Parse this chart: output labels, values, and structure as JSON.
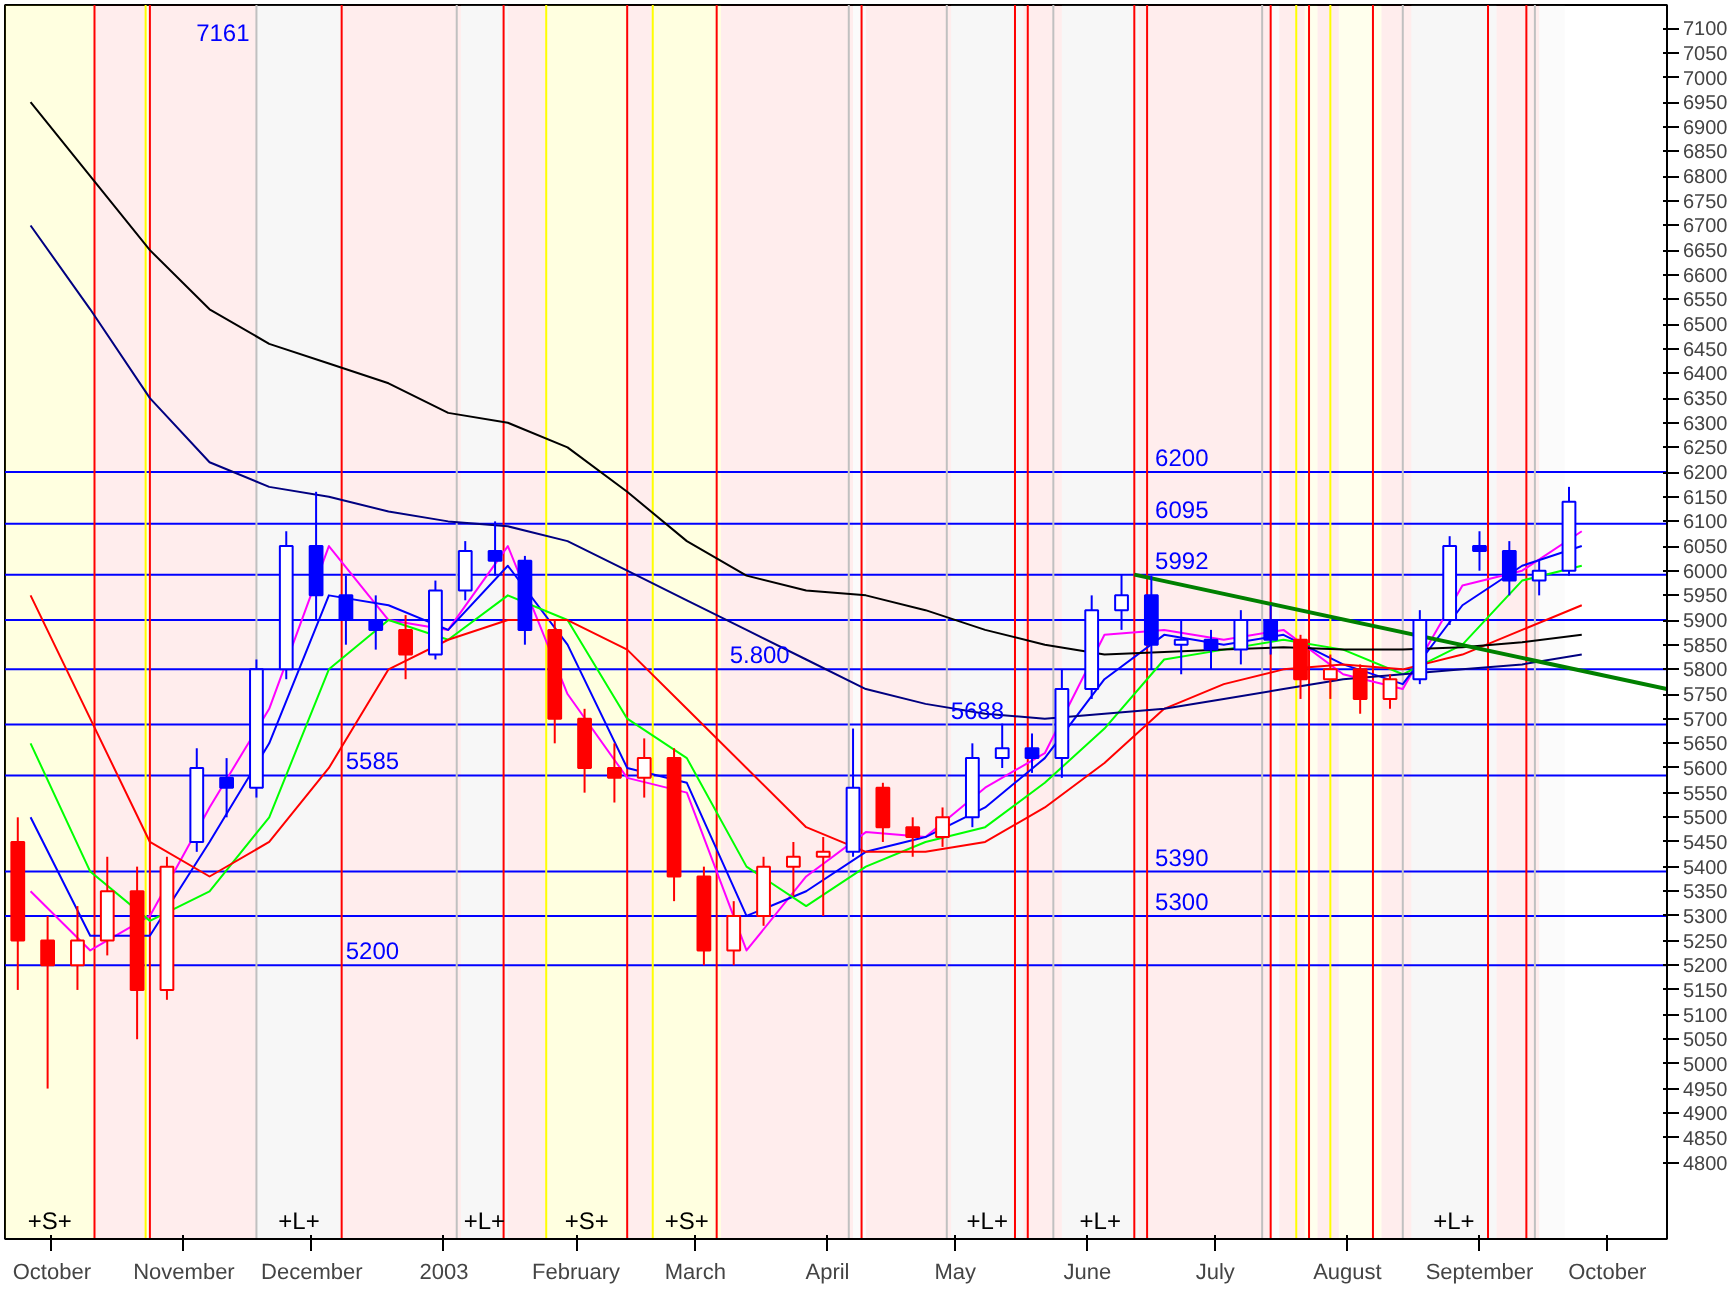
{
  "chart_data": {
    "type": "candlestick",
    "annotations": [
      "7161"
    ],
    "x": [
      "2002-09-23",
      "2002-09-30",
      "2002-10-07",
      "2002-10-14",
      "2002-10-21",
      "2002-10-28",
      "2002-11-04",
      "2002-11-11",
      "2002-11-18",
      "2002-11-25",
      "2002-12-02",
      "2002-12-09",
      "2002-12-16",
      "2002-12-23",
      "2002-12-30",
      "2003-01-06",
      "2003-01-13",
      "2003-01-20",
      "2003-01-27",
      "2003-02-03",
      "2003-02-10",
      "2003-02-17",
      "2003-02-24",
      "2003-03-03",
      "2003-03-10",
      "2003-03-17",
      "2003-03-24",
      "2003-03-31",
      "2003-04-07",
      "2003-04-14",
      "2003-04-21",
      "2003-04-28",
      "2003-05-05",
      "2003-05-12",
      "2003-05-19",
      "2003-05-26",
      "2003-06-02",
      "2003-06-09",
      "2003-06-16",
      "2003-06-23",
      "2003-06-30",
      "2003-07-07",
      "2003-07-14",
      "2003-07-21",
      "2003-07-28",
      "2003-08-04",
      "2003-08-11",
      "2003-08-18",
      "2003-08-25",
      "2003-09-01",
      "2003-09-08",
      "2003-09-15",
      "2003-09-22"
    ],
    "ohlc": [
      [
        5450,
        5500,
        5150,
        5250
      ],
      [
        5250,
        5300,
        4950,
        5200
      ],
      [
        5200,
        5320,
        5150,
        5250
      ],
      [
        5250,
        5420,
        5220,
        5350
      ],
      [
        5350,
        5400,
        5050,
        5150
      ],
      [
        5150,
        5420,
        5130,
        5400
      ],
      [
        5450,
        5640,
        5430,
        5600
      ],
      [
        5580,
        5620,
        5500,
        5560
      ],
      [
        5560,
        5820,
        5540,
        5800
      ],
      [
        5800,
        6080,
        5780,
        6050
      ],
      [
        6050,
        6160,
        5900,
        5950
      ],
      [
        5950,
        5990,
        5850,
        5900
      ],
      [
        5900,
        5950,
        5840,
        5880
      ],
      [
        5880,
        5910,
        5780,
        5830
      ],
      [
        5830,
        5980,
        5820,
        5960
      ],
      [
        5960,
        6060,
        5940,
        6040
      ],
      [
        6040,
        6100,
        5990,
        6020
      ],
      [
        6020,
        6030,
        5850,
        5880
      ],
      [
        5880,
        5900,
        5650,
        5700
      ],
      [
        5700,
        5720,
        5550,
        5600
      ],
      [
        5600,
        5650,
        5530,
        5580
      ],
      [
        5580,
        5660,
        5540,
        5620
      ],
      [
        5620,
        5640,
        5330,
        5380
      ],
      [
        5380,
        5400,
        5200,
        5230
      ],
      [
        5230,
        5330,
        5200,
        5300
      ],
      [
        5300,
        5420,
        5280,
        5400
      ],
      [
        5400,
        5450,
        5340,
        5420
      ],
      [
        5420,
        5460,
        5300,
        5430
      ],
      [
        5430,
        5680,
        5420,
        5560
      ],
      [
        5560,
        5570,
        5450,
        5480
      ],
      [
        5480,
        5500,
        5420,
        5460
      ],
      [
        5460,
        5520,
        5440,
        5500
      ],
      [
        5500,
        5650,
        5480,
        5620
      ],
      [
        5620,
        5690,
        5600,
        5640
      ],
      [
        5640,
        5670,
        5590,
        5620
      ],
      [
        5620,
        5800,
        5580,
        5760
      ],
      [
        5760,
        5950,
        5740,
        5920
      ],
      [
        5920,
        5992,
        5880,
        5950
      ],
      [
        5950,
        5990,
        5800,
        5850
      ],
      [
        5850,
        5900,
        5790,
        5860
      ],
      [
        5860,
        5880,
        5800,
        5840
      ],
      [
        5840,
        5920,
        5810,
        5900
      ],
      [
        5900,
        5930,
        5830,
        5860
      ],
      [
        5860,
        5870,
        5740,
        5780
      ],
      [
        5780,
        5830,
        5740,
        5800
      ],
      [
        5800,
        5810,
        5710,
        5740
      ],
      [
        5740,
        5790,
        5720,
        5780
      ],
      [
        5780,
        5920,
        5770,
        5900
      ],
      [
        5900,
        6070,
        5890,
        6050
      ],
      [
        6050,
        6080,
        6000,
        6040
      ],
      [
        6040,
        6060,
        5950,
        5980
      ],
      [
        5980,
        6020,
        5950,
        6000
      ],
      [
        6000,
        6170,
        5990,
        6140
      ]
    ],
    "colors": [
      "#ff0000",
      "#ff0000",
      "#ff0000",
      "#ff0000",
      "#ff0000",
      "#ff0000",
      "#0000ff",
      "#0000ff",
      "#0000ff",
      "#0000ff",
      "#0000ff",
      "#0000ff",
      "#0000ff",
      "#ff0000",
      "#0000ff",
      "#0000ff",
      "#0000ff",
      "#0000ff",
      "#ff0000",
      "#ff0000",
      "#ff0000",
      "#ff0000",
      "#ff0000",
      "#ff0000",
      "#ff0000",
      "#ff0000",
      "#ff0000",
      "#ff0000",
      "#0000ff",
      "#ff0000",
      "#ff0000",
      "#ff0000",
      "#0000ff",
      "#0000ff",
      "#0000ff",
      "#0000ff",
      "#0000ff",
      "#0000ff",
      "#0000ff",
      "#0000ff",
      "#0000ff",
      "#0000ff",
      "#0000ff",
      "#ff0000",
      "#ff0000",
      "#ff0000",
      "#ff0000",
      "#0000ff",
      "#0000ff",
      "#0000ff",
      "#0000ff",
      "#0000ff",
      "#0000ff"
    ],
    "series": [
      {
        "type": "line",
        "color": "#ff00ff",
        "x": [
          "2002-09-26",
          "2002-10-10",
          "2002-10-24",
          "2002-11-07",
          "2002-11-21",
          "2002-12-05",
          "2002-12-19",
          "2003-01-02",
          "2003-01-16",
          "2003-01-30",
          "2003-02-13",
          "2003-02-27",
          "2003-03-13",
          "2003-03-27",
          "2003-04-10",
          "2003-04-24",
          "2003-05-08",
          "2003-05-22",
          "2003-06-05",
          "2003-06-19",
          "2003-07-03",
          "2003-07-17",
          "2003-07-31",
          "2003-08-14",
          "2003-08-28",
          "2003-09-11",
          "2003-09-25"
        ],
        "values": [
          5350,
          5230,
          5300,
          5520,
          5720,
          6050,
          5900,
          5880,
          6050,
          5750,
          5580,
          5550,
          5230,
          5380,
          5470,
          5460,
          5560,
          5630,
          5870,
          5880,
          5860,
          5880,
          5790,
          5760,
          5970,
          6000,
          6080
        ]
      },
      {
        "type": "line",
        "color": "#0000ff",
        "x": [
          "2002-09-26",
          "2002-10-10",
          "2002-10-24",
          "2002-11-07",
          "2002-11-21",
          "2002-12-05",
          "2002-12-19",
          "2003-01-02",
          "2003-01-16",
          "2003-01-30",
          "2003-02-13",
          "2003-02-27",
          "2003-03-13",
          "2003-03-27",
          "2003-04-10",
          "2003-04-24",
          "2003-05-08",
          "2003-05-22",
          "2003-06-05",
          "2003-06-19",
          "2003-07-03",
          "2003-07-17",
          "2003-07-31",
          "2003-08-14",
          "2003-08-28",
          "2003-09-11",
          "2003-09-25"
        ],
        "values": [
          5500,
          5260,
          5260,
          5450,
          5650,
          5950,
          5930,
          5880,
          6010,
          5850,
          5600,
          5570,
          5300,
          5350,
          5430,
          5460,
          5520,
          5620,
          5780,
          5870,
          5850,
          5870,
          5810,
          5770,
          5930,
          6010,
          6050
        ]
      },
      {
        "type": "line",
        "color": "#00ff00",
        "x": [
          "2002-09-26",
          "2002-10-10",
          "2002-10-24",
          "2002-11-07",
          "2002-11-21",
          "2002-12-05",
          "2002-12-19",
          "2003-01-02",
          "2003-01-16",
          "2003-01-30",
          "2003-02-13",
          "2003-02-27",
          "2003-03-13",
          "2003-03-27",
          "2003-04-10",
          "2003-04-24",
          "2003-05-08",
          "2003-05-22",
          "2003-06-05",
          "2003-06-19",
          "2003-07-03",
          "2003-07-17",
          "2003-07-31",
          "2003-08-14",
          "2003-08-28",
          "2003-09-11",
          "2003-09-25"
        ],
        "values": [
          5650,
          5390,
          5290,
          5350,
          5500,
          5800,
          5900,
          5860,
          5950,
          5900,
          5700,
          5620,
          5400,
          5320,
          5400,
          5450,
          5480,
          5570,
          5680,
          5820,
          5840,
          5860,
          5840,
          5790,
          5850,
          5980,
          6010
        ]
      },
      {
        "type": "line",
        "color": "#ff0000",
        "x": [
          "2002-09-26",
          "2002-10-10",
          "2002-10-24",
          "2002-11-07",
          "2002-11-21",
          "2002-12-05",
          "2002-12-19",
          "2003-01-02",
          "2003-01-16",
          "2003-01-30",
          "2003-02-13",
          "2003-02-27",
          "2003-03-13",
          "2003-03-27",
          "2003-04-10",
          "2003-04-24",
          "2003-05-08",
          "2003-05-22",
          "2003-06-05",
          "2003-06-19",
          "2003-07-03",
          "2003-07-17",
          "2003-07-31",
          "2003-08-14",
          "2003-08-28",
          "2003-09-11",
          "2003-09-25"
        ],
        "values": [
          5950,
          5700,
          5450,
          5380,
          5450,
          5600,
          5800,
          5860,
          5900,
          5900,
          5840,
          5720,
          5600,
          5480,
          5430,
          5430,
          5450,
          5520,
          5610,
          5720,
          5770,
          5800,
          5810,
          5800,
          5830,
          5880,
          5930
        ]
      },
      {
        "type": "line",
        "color": "#000080",
        "x": [
          "2002-09-26",
          "2002-10-10",
          "2002-10-24",
          "2002-11-07",
          "2002-11-21",
          "2002-12-05",
          "2002-12-19",
          "2003-01-02",
          "2003-01-16",
          "2003-01-30",
          "2003-02-13",
          "2003-02-27",
          "2003-03-13",
          "2003-03-27",
          "2003-04-10",
          "2003-04-24",
          "2003-05-08",
          "2003-05-22",
          "2003-06-05",
          "2003-06-19",
          "2003-07-03",
          "2003-07-17",
          "2003-07-31",
          "2003-08-14",
          "2003-08-28",
          "2003-09-11",
          "2003-09-25"
        ],
        "values": [
          6700,
          6530,
          6350,
          6220,
          6170,
          6150,
          6120,
          6100,
          6090,
          6060,
          6000,
          5940,
          5880,
          5820,
          5760,
          5730,
          5710,
          5700,
          5710,
          5720,
          5740,
          5760,
          5780,
          5790,
          5800,
          5810,
          5830
        ]
      },
      {
        "type": "line",
        "color": "#000000",
        "x": [
          "2002-09-26",
          "2002-10-10",
          "2002-10-24",
          "2002-11-07",
          "2002-11-21",
          "2002-12-05",
          "2002-12-19",
          "2003-01-02",
          "2003-01-16",
          "2003-01-30",
          "2003-02-13",
          "2003-02-27",
          "2003-03-13",
          "2003-03-27",
          "2003-04-10",
          "2003-04-24",
          "2003-05-08",
          "2003-05-22",
          "2003-06-05",
          "2003-06-19",
          "2003-07-03",
          "2003-07-17",
          "2003-07-31",
          "2003-08-14",
          "2003-08-28",
          "2003-09-11",
          "2003-09-25"
        ],
        "values": [
          6950,
          6800,
          6650,
          6530,
          6460,
          6420,
          6380,
          6320,
          6300,
          6250,
          6160,
          6060,
          5990,
          5960,
          5950,
          5920,
          5880,
          5850,
          5830,
          5835,
          5840,
          5845,
          5840,
          5840,
          5845,
          5855,
          5870
        ]
      },
      {
        "type": "line",
        "color": "#008000",
        "x": [
          "2003-06-12",
          "2003-10-15"
        ],
        "values": [
          5992,
          5760
        ]
      }
    ],
    "xlim": [
      "2002-09-20",
      "2003-10-15"
    ],
    "xticks": [
      {
        "value": "2002-10-01",
        "label": "October"
      },
      {
        "value": "2002-11-01",
        "label": "November"
      },
      {
        "value": "2002-12-01",
        "label": "December"
      },
      {
        "value": "2003-01-01",
        "label": "2003"
      },
      {
        "value": "2003-02-01",
        "label": "February"
      },
      {
        "value": "2003-03-01",
        "label": "March"
      },
      {
        "value": "2003-04-01",
        "label": "April"
      },
      {
        "value": "2003-05-01",
        "label": "May"
      },
      {
        "value": "2003-06-01",
        "label": "June"
      },
      {
        "value": "2003-07-01",
        "label": "July"
      },
      {
        "value": "2003-08-01",
        "label": "August"
      },
      {
        "value": "2003-09-01",
        "label": "September"
      },
      {
        "value": "2003-10-01",
        "label": "October"
      }
    ],
    "ylim": [
      4645,
      7147
    ],
    "yticks": [
      4800,
      4850,
      4900,
      4950,
      5000,
      5050,
      5100,
      5150,
      5200,
      5250,
      5300,
      5350,
      5400,
      5450,
      5500,
      5550,
      5600,
      5650,
      5700,
      5750,
      5800,
      5850,
      5900,
      5950,
      6000,
      6050,
      6100,
      6150,
      6200,
      6250,
      6300,
      6350,
      6400,
      6450,
      6500,
      6550,
      6600,
      6650,
      6700,
      6750,
      6800,
      6850,
      6900,
      6950,
      7000,
      7050,
      7100
    ],
    "grid": false,
    "ref_lines": [
      {
        "axis": "y",
        "value": 6200,
        "label": "6200",
        "color": "#0000ff"
      },
      {
        "axis": "y",
        "value": 6095,
        "label": "6095",
        "color": "#0000ff"
      },
      {
        "axis": "y",
        "value": 5992,
        "label": "5992",
        "color": "#0000ff"
      },
      {
        "axis": "y",
        "value": 5900,
        "label": null,
        "color": "#0000ff"
      },
      {
        "axis": "y",
        "value": 5800,
        "label": "5.800",
        "color": "#0000ff"
      },
      {
        "axis": "y",
        "value": 5688,
        "label": "5688",
        "color": "#0000ff"
      },
      {
        "axis": "y",
        "value": 5585,
        "label": "5585",
        "color": "#0000ff"
      },
      {
        "axis": "y",
        "value": 5390,
        "label": "5390",
        "color": "#0000ff"
      },
      {
        "axis": "y",
        "value": 5300,
        "label": "5300",
        "color": "#0000ff"
      },
      {
        "axis": "y",
        "value": 5200,
        "label": "5200",
        "color": "#0000ff"
      },
      {
        "axis": "x",
        "value": "2002-10-11",
        "color": "#ff0000"
      },
      {
        "axis": "x",
        "value": "2002-10-24",
        "color": "#ff0000"
      },
      {
        "axis": "x",
        "value": "2002-12-08",
        "color": "#ff0000"
      },
      {
        "axis": "x",
        "value": "2003-01-15",
        "color": "#ff0000"
      },
      {
        "axis": "x",
        "value": "2003-02-13",
        "color": "#ff0000"
      },
      {
        "axis": "x",
        "value": "2003-03-06",
        "color": "#ff0000"
      },
      {
        "axis": "x",
        "value": "2003-04-09",
        "color": "#ff0000"
      },
      {
        "axis": "x",
        "value": "2003-05-15",
        "color": "#ff0000"
      },
      {
        "axis": "x",
        "value": "2003-05-18",
        "color": "#ff0000"
      },
      {
        "axis": "x",
        "value": "2003-06-12",
        "color": "#ff0000"
      },
      {
        "axis": "x",
        "value": "2003-06-15",
        "color": "#ff0000"
      },
      {
        "axis": "x",
        "value": "2003-07-14",
        "color": "#ff0000"
      },
      {
        "axis": "x",
        "value": "2003-07-23",
        "color": "#ff0000"
      },
      {
        "axis": "x",
        "value": "2003-08-07",
        "color": "#ff0000"
      },
      {
        "axis": "x",
        "value": "2003-09-03",
        "color": "#ff0000"
      },
      {
        "axis": "x",
        "value": "2003-09-12",
        "color": "#ff0000"
      },
      {
        "axis": "x",
        "value": "2002-10-23",
        "color": "#ffff00"
      },
      {
        "axis": "x",
        "value": "2003-01-25",
        "color": "#ffff00"
      },
      {
        "axis": "x",
        "value": "2003-02-19",
        "color": "#ffff00"
      },
      {
        "axis": "x",
        "value": "2003-07-20",
        "color": "#ffff00"
      },
      {
        "axis": "x",
        "value": "2003-07-28",
        "color": "#ffff00"
      },
      {
        "axis": "x",
        "value": "2002-11-18",
        "color": "#c0c0c0"
      },
      {
        "axis": "x",
        "value": "2003-01-04",
        "color": "#c0c0c0"
      },
      {
        "axis": "x",
        "value": "2003-04-06",
        "color": "#c0c0c0"
      },
      {
        "axis": "x",
        "value": "2003-04-29",
        "color": "#c0c0c0"
      },
      {
        "axis": "x",
        "value": "2003-05-24",
        "color": "#c0c0c0"
      },
      {
        "axis": "x",
        "value": "2003-07-12",
        "color": "#c0c0c0"
      },
      {
        "axis": "x",
        "value": "2003-08-14",
        "color": "#c0c0c0"
      },
      {
        "axis": "x",
        "value": "2003-09-14",
        "color": "#c0c0c0"
      }
    ],
    "bands": [
      {
        "axis": "x",
        "from": "2002-09-20",
        "to": "2002-10-11",
        "label": "+S+",
        "color": "#ffff00"
      },
      {
        "axis": "x",
        "from": "2002-10-11",
        "to": "2002-10-23",
        "label": null,
        "color": "#ff0000"
      },
      {
        "axis": "x",
        "from": "2002-10-23",
        "to": "2002-10-24",
        "label": null,
        "color": "#ffff00"
      },
      {
        "axis": "x",
        "from": "2002-10-24",
        "to": "2002-11-18",
        "label": null,
        "color": "#ff0000"
      },
      {
        "axis": "x",
        "from": "2002-11-18",
        "to": "2002-12-08",
        "label": "+L+",
        "color": "#c0c0c0"
      },
      {
        "axis": "x",
        "from": "2002-12-08",
        "to": "2003-01-05",
        "label": null,
        "color": "#ff0000"
      },
      {
        "axis": "x",
        "from": "2003-01-05",
        "to": "2003-01-16",
        "label": "+L+",
        "color": "#c0c0c0"
      },
      {
        "axis": "x",
        "from": "2003-01-16",
        "to": "2003-01-25",
        "label": null,
        "color": "#ff0000"
      },
      {
        "axis": "x",
        "from": "2003-01-25",
        "to": "2003-02-13",
        "label": "+S+",
        "color": "#ffff00"
      },
      {
        "axis": "x",
        "from": "2003-02-13",
        "to": "2003-02-19",
        "label": null,
        "color": "#ff0000"
      },
      {
        "axis": "x",
        "from": "2003-02-19",
        "to": "2003-03-07",
        "label": "+S+",
        "color": "#ffff00"
      },
      {
        "axis": "x",
        "from": "2003-03-07",
        "to": "2003-04-07",
        "label": null,
        "color": "#ff0000"
      },
      {
        "axis": "x",
        "from": "2003-04-07",
        "to": "2003-04-10",
        "label": null,
        "color": "#c0c0c0"
      },
      {
        "axis": "x",
        "from": "2003-04-10",
        "to": "2003-04-30",
        "label": null,
        "color": "#ff0000"
      },
      {
        "axis": "x",
        "from": "2003-04-30",
        "to": "2003-05-17",
        "label": "+L+",
        "color": "#c0c0c0"
      },
      {
        "axis": "x",
        "from": "2003-05-17",
        "to": "2003-05-26",
        "label": null,
        "color": "#ff0000"
      },
      {
        "axis": "x",
        "from": "2003-05-26",
        "to": "2003-06-13",
        "label": "+L+",
        "color": "#c0c0c0"
      },
      {
        "axis": "x",
        "from": "2003-06-13",
        "to": "2003-07-14",
        "label": null,
        "color": "#ff0000"
      },
      {
        "axis": "x",
        "from": "2003-07-14",
        "to": "2003-07-16",
        "label": null,
        "color": "#c0c0c0"
      },
      {
        "axis": "x",
        "from": "2003-07-16",
        "to": "2003-07-22",
        "label": null,
        "color": "#ff0000"
      },
      {
        "axis": "x",
        "from": "2003-07-22",
        "to": "2003-07-25",
        "label": null,
        "color": "#ffff00"
      },
      {
        "axis": "x",
        "from": "2003-07-25",
        "to": "2003-07-30",
        "label": null,
        "color": "#ff0000"
      },
      {
        "axis": "x",
        "from": "2003-07-30",
        "to": "2003-08-09",
        "label": null,
        "color": "#ffff00"
      },
      {
        "axis": "x",
        "from": "2003-08-09",
        "to": "2003-08-16",
        "label": null,
        "color": "#ff0000"
      },
      {
        "axis": "x",
        "from": "2003-08-16",
        "to": "2003-09-05",
        "label": "+L+",
        "color": "#c0c0c0"
      },
      {
        "axis": "x",
        "from": "2003-09-05",
        "to": "2003-09-15",
        "label": null,
        "color": "#ff0000"
      },
      {
        "axis": "x",
        "from": "2003-09-15",
        "to": "2003-09-21",
        "label": null,
        "color": "#c0c0c0"
      }
    ]
  }
}
